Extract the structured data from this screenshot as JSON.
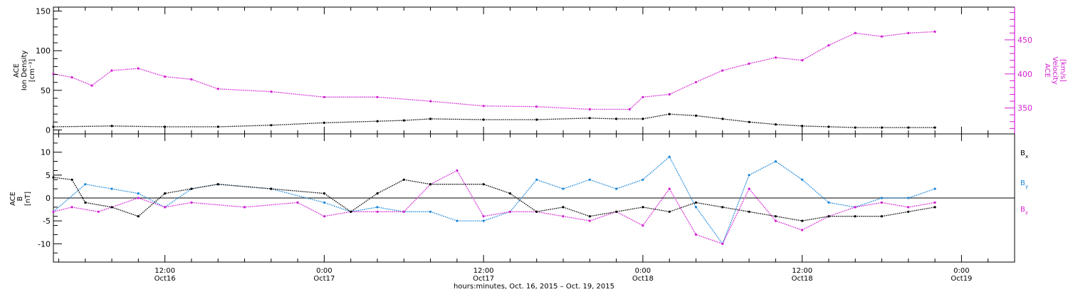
{
  "figure": {
    "xaxis_title": "hours:minutes, Oct. 16, 2015 – Oct. 19, 2015",
    "xticks": [
      {
        "t": 12,
        "time": "12:00",
        "date": "Oct16"
      },
      {
        "t": 24,
        "time": "0:00",
        "date": "Oct17"
      },
      {
        "t": 36,
        "time": "12:00",
        "date": "Oct17"
      },
      {
        "t": 48,
        "time": "0:00",
        "date": "Oct18"
      },
      {
        "t": 60,
        "time": "12:00",
        "date": "Oct18"
      },
      {
        "t": 72,
        "time": "0:00",
        "date": "Oct19"
      }
    ]
  },
  "panel_top": {
    "left_label": [
      "ACE",
      "Ion Density",
      "[cm⁻³]"
    ],
    "right_label": [
      "ACE",
      "Velocity",
      "[km/s]"
    ]
  },
  "panel_bottom": {
    "left_label": [
      "ACE",
      "B",
      "[nT]"
    ],
    "legend": [
      {
        "name": "Bx",
        "base": "B",
        "sub": "x",
        "color": "#000000"
      },
      {
        "name": "By",
        "base": "B",
        "sub": "y",
        "color": "#1a86d8"
      },
      {
        "name": "Bz",
        "base": "B",
        "sub": "z",
        "color": "#d31fd3"
      }
    ]
  },
  "colors": {
    "density": "#000000",
    "velocity": "#d31fd3",
    "bx": "#000000",
    "by": "#1a86d8",
    "bz": "#d31fd3",
    "axis": "#000000"
  },
  "chart_data": [
    {
      "type": "scatter",
      "title": "",
      "x_unit": "hours since 2015-10-16 00:00",
      "xlim": [
        3.6,
        76
      ],
      "xticklabels": [
        "12:00 Oct16",
        "0:00 Oct17",
        "12:00 Oct17",
        "0:00 Oct18",
        "12:00 Oct18",
        "0:00 Oct19"
      ],
      "ylabel": "ACE Ion Density [cm⁻³]",
      "ylim": [
        -5,
        155
      ],
      "yticks": [
        0,
        50,
        100,
        150
      ],
      "y2label": "ACE Velocity [km/s]",
      "y2lim": [
        312,
        498
      ],
      "y2ticks": [
        350,
        400,
        450
      ],
      "series": [
        {
          "name": "Ion Density",
          "axis": "left",
          "x": [
            3.6,
            8,
            12,
            16,
            20,
            24,
            28,
            30,
            32,
            36,
            40,
            44,
            46,
            48,
            50,
            52,
            54,
            56,
            58,
            60,
            62,
            64,
            66,
            68,
            70
          ],
          "values": [
            4,
            5,
            4,
            4,
            6,
            9,
            11,
            12,
            14,
            13,
            13,
            15,
            14,
            14,
            20,
            18,
            14,
            10,
            7,
            5,
            4,
            3,
            3,
            3,
            3
          ]
        },
        {
          "name": "Velocity",
          "axis": "right",
          "x": [
            3.6,
            5,
            6.5,
            8,
            10,
            12,
            14,
            16,
            20,
            24,
            28,
            32,
            36,
            40,
            44,
            47,
            48,
            50,
            52,
            54,
            56,
            58,
            60,
            62,
            64,
            66,
            68,
            70
          ],
          "values": [
            400,
            395,
            383,
            405,
            408,
            396,
            392,
            378,
            374,
            366,
            366,
            360,
            353,
            352,
            348,
            348,
            366,
            370,
            388,
            405,
            415,
            424,
            420,
            442,
            460,
            455,
            460,
            462
          ]
        }
      ]
    },
    {
      "type": "scatter",
      "title": "",
      "x_unit": "hours since 2015-10-16 00:00",
      "xlim": [
        3.6,
        76
      ],
      "ylabel": "ACE B [nT]",
      "ylim": [
        -14,
        14
      ],
      "yticks": [
        -10,
        -5,
        0,
        5,
        10
      ],
      "series": [
        {
          "name": "Bx",
          "x": [
            3.6,
            5,
            6,
            8,
            10,
            12,
            14,
            16,
            20,
            24,
            26,
            28,
            30,
            32,
            36,
            38,
            40,
            42,
            44,
            46,
            48,
            50,
            52,
            54,
            56,
            58,
            60,
            62,
            64,
            66,
            68,
            70
          ],
          "values": [
            4.5,
            4,
            -1,
            -2,
            -4,
            1,
            2,
            3,
            2,
            1,
            -3,
            1,
            4,
            3,
            3,
            1,
            -3,
            -2,
            -4,
            -3,
            -2,
            -3,
            -1,
            -2,
            -3,
            -4,
            -5,
            -4,
            -4,
            -4,
            -3,
            -2
          ]
        },
        {
          "name": "By",
          "x": [
            3.6,
            6,
            8,
            10,
            12,
            14,
            16,
            20,
            24,
            26,
            28,
            30,
            32,
            34,
            36,
            38,
            40,
            42,
            44,
            46,
            48,
            50,
            52,
            54,
            56,
            58,
            60,
            62,
            64,
            66,
            68,
            70
          ],
          "values": [
            -3,
            3,
            2,
            1,
            -2,
            2,
            3,
            2,
            -1,
            -3,
            -2,
            -3,
            -3,
            -5,
            -5,
            -3,
            4,
            2,
            4,
            2,
            4,
            9,
            -2,
            -10,
            5,
            8,
            4,
            -1,
            -2,
            0,
            0,
            2
          ]
        },
        {
          "name": "Bz",
          "x": [
            3.6,
            5,
            7,
            10,
            12,
            14,
            18,
            22,
            24,
            26,
            28,
            30,
            32,
            34,
            36,
            38,
            40,
            42,
            44,
            46,
            48,
            50,
            52,
            54,
            56,
            58,
            60,
            62,
            64,
            66,
            68,
            70
          ],
          "values": [
            -3,
            -2,
            -3,
            0,
            -2,
            -1,
            -2,
            -1,
            -4,
            -3,
            -3,
            -3,
            3,
            6,
            -4,
            -3,
            -3,
            -4,
            -5,
            -3,
            -6,
            2,
            -8,
            -10,
            2,
            -5,
            -7,
            -4,
            -2,
            -1,
            -2,
            -1
          ]
        }
      ]
    }
  ]
}
